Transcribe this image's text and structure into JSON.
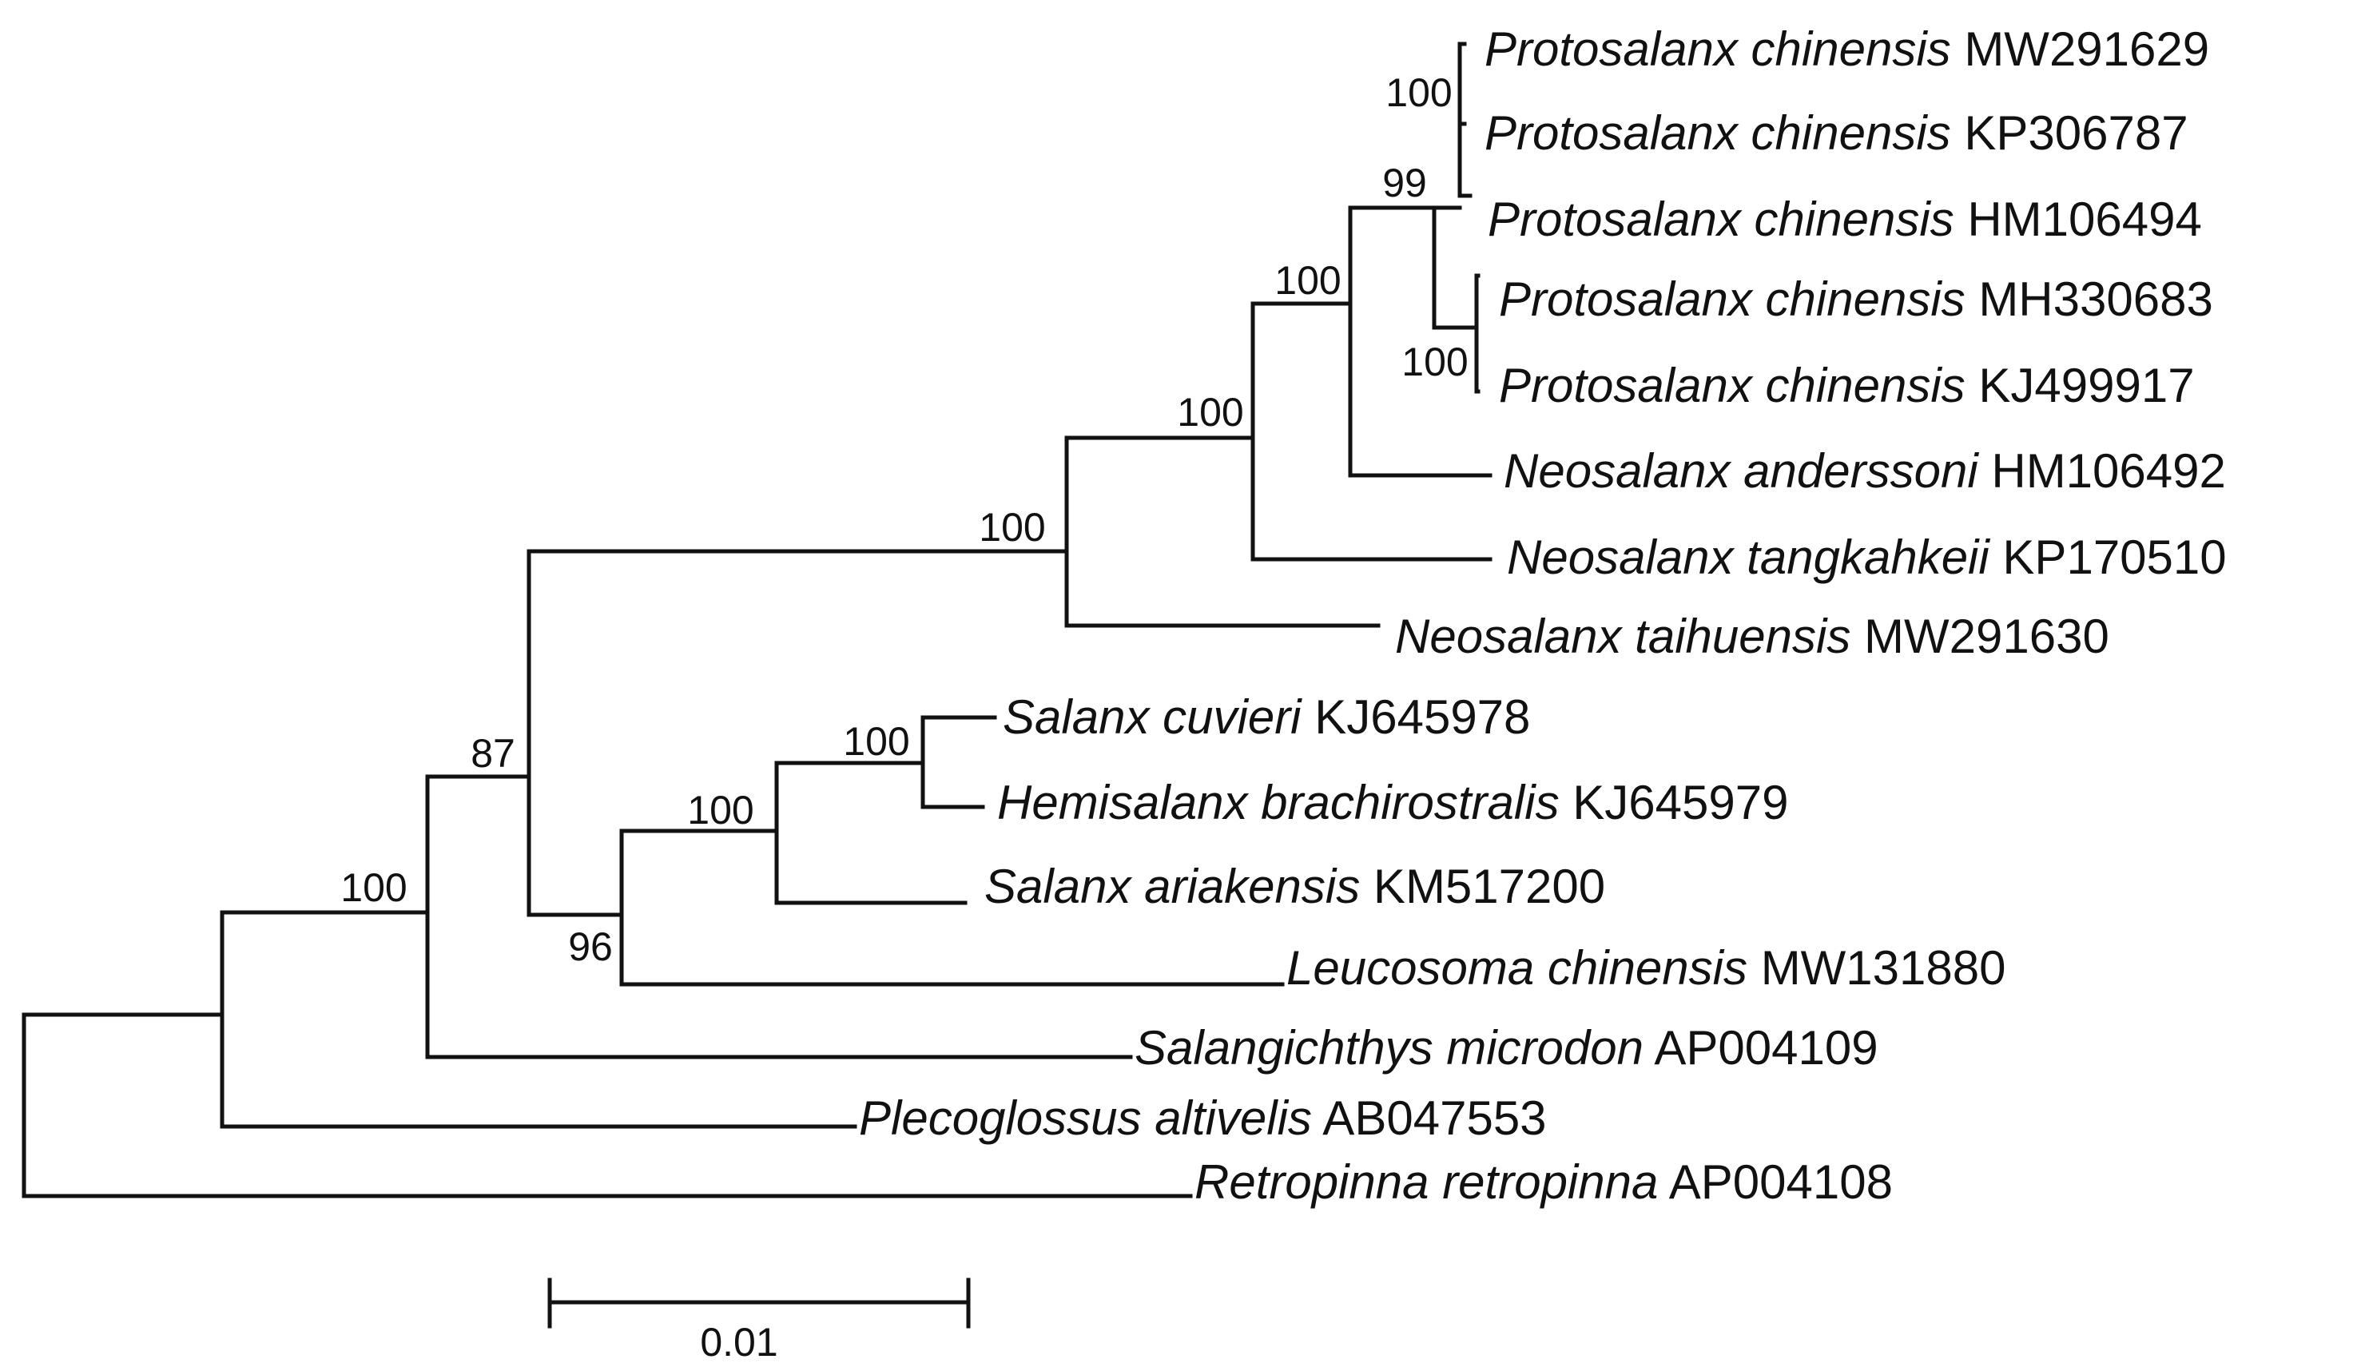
{
  "tree": {
    "leaves": [
      {
        "id": "l1",
        "species": "Protosalanx chinensis",
        "accession": "MW291629"
      },
      {
        "id": "l2",
        "species": "Protosalanx chinensis",
        "accession": "KP306787"
      },
      {
        "id": "l3",
        "species": "Protosalanx chinensis",
        "accession": "HM106494"
      },
      {
        "id": "l4",
        "species": "Protosalanx chinensis",
        "accession": "MH330683"
      },
      {
        "id": "l5",
        "species": "Protosalanx chinensis",
        "accession": "KJ499917"
      },
      {
        "id": "l6",
        "species": "Neosalanx anderssoni",
        "accession": "HM106492"
      },
      {
        "id": "l7",
        "species": "Neosalanx tangkahkeii",
        "accession": "KP170510"
      },
      {
        "id": "l8",
        "species": "Neosalanx taihuensis",
        "accession": "MW291630"
      },
      {
        "id": "l9",
        "species": "Salanx cuvieri",
        "accession": "KJ645978"
      },
      {
        "id": "l10",
        "species": "Hemisalanx brachirostralis",
        "accession": "KJ645979"
      },
      {
        "id": "l11",
        "species": "Salanx ariakensis",
        "accession": "KM517200"
      },
      {
        "id": "l12",
        "species": "Leucosoma chinensis",
        "accession": "MW131880"
      },
      {
        "id": "l13",
        "species": "Salangichthys microdon",
        "accession": "AP004109"
      },
      {
        "id": "l14",
        "species": "Plecoglossus altivelis",
        "accession": "AB047553"
      },
      {
        "id": "l15",
        "species": "Retropinna retropinna",
        "accession": "AP004108"
      }
    ],
    "support_values": [
      "100",
      "99",
      "100",
      "100",
      "100",
      "100",
      "100",
      "100",
      "96",
      "87",
      "100"
    ],
    "scale_bar": {
      "label": "0.01"
    }
  }
}
